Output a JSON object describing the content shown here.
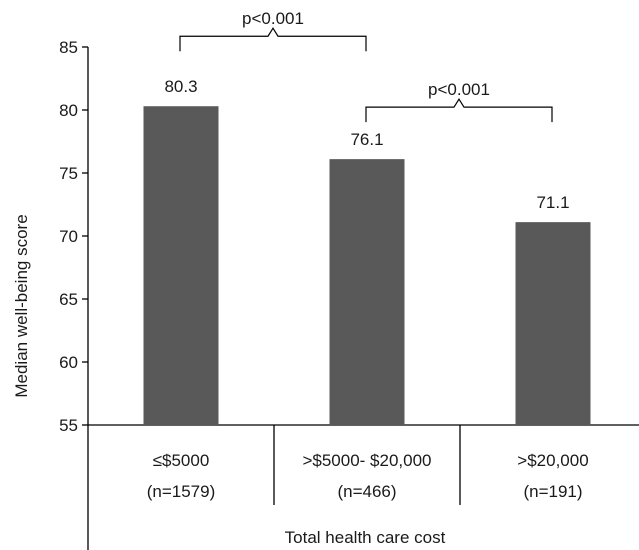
{
  "chart_data": {
    "type": "bar",
    "categories": [
      {
        "line1": "≤$5000",
        "line2": "(n=1579)"
      },
      {
        "line1": ">$5000- $20,000",
        "line2": "(n=466)"
      },
      {
        "line1": ">$20,000",
        "line2": "(n=191)"
      }
    ],
    "values": [
      80.3,
      76.1,
      71.1
    ],
    "data_labels": [
      "80.3",
      "76.1",
      "71.1"
    ],
    "ylabel": "Median well-being score",
    "xlabel": "Total health care cost",
    "ylim": [
      55,
      85
    ],
    "yticks": [
      55,
      60,
      65,
      70,
      75,
      80,
      85
    ],
    "bar_color": "#595959",
    "grid": false,
    "annotations": [
      {
        "text": "p<0.001",
        "from": 0,
        "to": 1
      },
      {
        "text": "p<0.001",
        "from": 1,
        "to": 2
      }
    ]
  }
}
